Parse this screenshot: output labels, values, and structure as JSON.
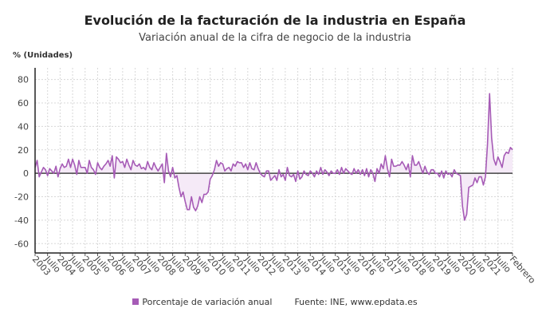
{
  "chart_data": {
    "type": "area",
    "title": "Evolución de la facturación de la industria en España",
    "subtitle": "Variación anual de la cifra de negocio de la industria",
    "ylabel": "% (Unidades)",
    "xlabel": "",
    "ylim": [
      -68,
      90
    ],
    "yticks": [
      80,
      60,
      40,
      20,
      0,
      -20,
      -40,
      -60
    ],
    "xtick_labels": [
      "2003",
      "Julio",
      "2004",
      "Julio",
      "2005",
      "Julio",
      "2006",
      "Julio",
      "2007",
      "Julio",
      "2008",
      "Julio",
      "2009",
      "Julio",
      "2010",
      "Julio",
      "2011",
      "Julio",
      "2012",
      "Julio",
      "2013",
      "Julio",
      "2014",
      "Julio",
      "2015",
      "Julio",
      "2016",
      "Julio",
      "2017",
      "Julio",
      "2018",
      "Julio",
      "2019",
      "Julio",
      "2020",
      "Julio",
      "2021",
      "Julio",
      "Febrero"
    ],
    "x_start": "2003-01",
    "x_end": "2022-02",
    "frequency": "monthly",
    "grid": true,
    "legend_position": "bottom",
    "color": "#a65bb6",
    "fill_color": "#f5eaf7",
    "source": "Fuente: INE, www.epdata.es",
    "series": [
      {
        "name": "Porcentaje de variación anual",
        "values": [
          5,
          11,
          -3,
          1,
          5,
          3,
          -2,
          4,
          2,
          0,
          6,
          -3,
          4,
          8,
          5,
          6,
          12,
          5,
          12,
          7,
          -1,
          11,
          5,
          5,
          5,
          0,
          11,
          5,
          3,
          -1,
          9,
          5,
          3,
          6,
          8,
          11,
          6,
          15,
          -4,
          14,
          12,
          9,
          10,
          5,
          12,
          7,
          3,
          11,
          7,
          6,
          8,
          4,
          5,
          3,
          10,
          5,
          3,
          9,
          5,
          2,
          5,
          8,
          -8,
          17,
          2,
          -3,
          5,
          -4,
          -2,
          -12,
          -20,
          -16,
          -24,
          -31,
          -31,
          -20,
          -29,
          -32,
          -28,
          -20,
          -25,
          -18,
          -18,
          -16,
          -5,
          -2,
          3,
          11,
          6,
          9,
          8,
          2,
          4,
          5,
          2,
          8,
          6,
          10,
          9,
          9,
          5,
          8,
          3,
          9,
          4,
          3,
          9,
          4,
          0,
          -2,
          -3,
          2,
          2,
          -6,
          -4,
          -2,
          -6,
          3,
          -3,
          -1,
          -6,
          5,
          -2,
          -3,
          -1,
          -7,
          2,
          -5,
          -3,
          2,
          -1,
          -2,
          2,
          0,
          -3,
          2,
          -1,
          5,
          -1,
          3,
          1,
          -2,
          2,
          0,
          0,
          3,
          -1,
          5,
          0,
          4,
          2,
          0,
          -1,
          4,
          0,
          3,
          -1,
          3,
          -2,
          4,
          -3,
          3,
          0,
          -7,
          4,
          0,
          8,
          4,
          15,
          4,
          -3,
          12,
          6,
          6,
          7,
          7,
          10,
          7,
          3,
          8,
          -3,
          15,
          7,
          7,
          10,
          5,
          0,
          6,
          1,
          -1,
          3,
          3,
          0,
          0,
          -3,
          2,
          -4,
          2,
          -1,
          0,
          -3,
          3,
          0,
          -1,
          -2,
          -28,
          -40,
          -35,
          -12,
          -11,
          -10,
          -4,
          -8,
          -3,
          -3,
          -10,
          -3,
          25,
          68,
          30,
          12,
          7,
          14,
          10,
          5,
          15,
          18,
          17,
          22,
          20
        ]
      }
    ]
  }
}
